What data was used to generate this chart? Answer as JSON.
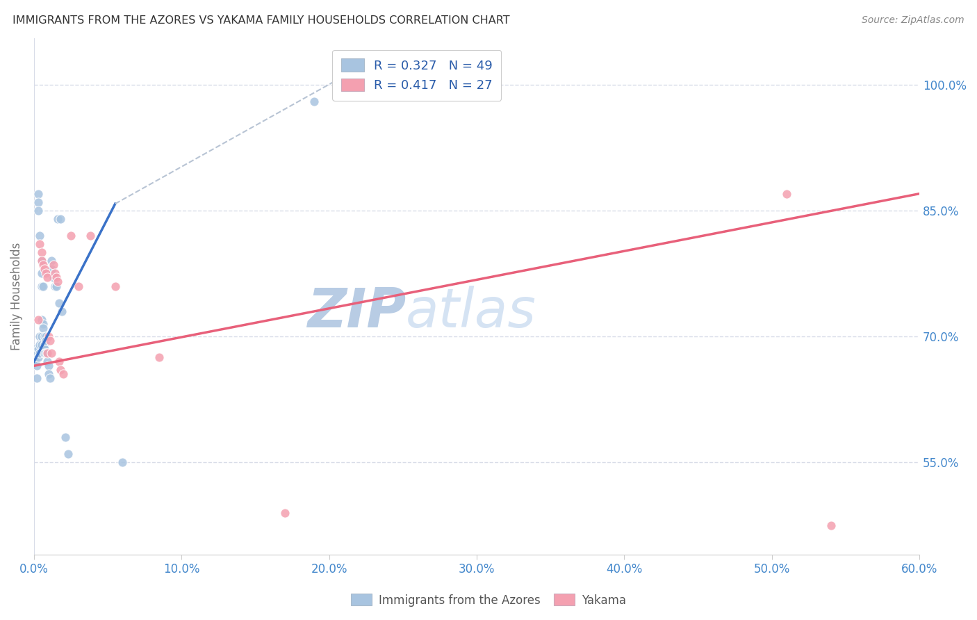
{
  "title": "IMMIGRANTS FROM THE AZORES VS YAKAMA FAMILY HOUSEHOLDS CORRELATION CHART",
  "source": "Source: ZipAtlas.com",
  "ylabel_label": "Family Households",
  "x_ticklabels": [
    "0.0%",
    "10.0%",
    "20.0%",
    "30.0%",
    "40.0%",
    "50.0%",
    "60.0%"
  ],
  "y_ticklabels": [
    "55.0%",
    "70.0%",
    "85.0%",
    "100.0%"
  ],
  "x_tick_vals": [
    0.0,
    0.1,
    0.2,
    0.3,
    0.4,
    0.5,
    0.6
  ],
  "y_tick_vals": [
    0.55,
    0.7,
    0.85,
    1.0
  ],
  "x_min": 0.0,
  "x_max": 0.6,
  "y_min": 0.44,
  "y_max": 1.055,
  "blue_color": "#a8c4e0",
  "pink_color": "#f4a0b0",
  "blue_line_color": "#3a72c8",
  "pink_line_color": "#e8607a",
  "dashed_line_color": "#b8c4d4",
  "legend_text_color": "#2a5caa",
  "title_color": "#333333",
  "source_color": "#888888",
  "axis_tick_color": "#4488cc",
  "grid_color": "#d8dce8",
  "R_blue": 0.327,
  "N_blue": 49,
  "R_pink": 0.417,
  "N_pink": 27,
  "blue_scatter_x": [
    0.001,
    0.001,
    0.002,
    0.002,
    0.002,
    0.003,
    0.003,
    0.003,
    0.003,
    0.003,
    0.004,
    0.004,
    0.004,
    0.004,
    0.005,
    0.005,
    0.005,
    0.005,
    0.005,
    0.005,
    0.006,
    0.006,
    0.006,
    0.007,
    0.007,
    0.007,
    0.007,
    0.008,
    0.008,
    0.008,
    0.009,
    0.009,
    0.01,
    0.01,
    0.011,
    0.012,
    0.012,
    0.013,
    0.013,
    0.014,
    0.015,
    0.016,
    0.017,
    0.018,
    0.019,
    0.021,
    0.023,
    0.19,
    0.06
  ],
  "blue_scatter_y": [
    0.685,
    0.67,
    0.68,
    0.665,
    0.65,
    0.87,
    0.86,
    0.85,
    0.685,
    0.675,
    0.82,
    0.7,
    0.69,
    0.68,
    0.79,
    0.775,
    0.76,
    0.72,
    0.7,
    0.69,
    0.76,
    0.715,
    0.71,
    0.7,
    0.69,
    0.685,
    0.68,
    0.7,
    0.695,
    0.68,
    0.68,
    0.67,
    0.665,
    0.655,
    0.65,
    0.79,
    0.78,
    0.77,
    0.77,
    0.76,
    0.76,
    0.84,
    0.74,
    0.84,
    0.73,
    0.58,
    0.56,
    0.98,
    0.55
  ],
  "pink_scatter_x": [
    0.003,
    0.004,
    0.005,
    0.005,
    0.006,
    0.007,
    0.008,
    0.009,
    0.009,
    0.01,
    0.011,
    0.012,
    0.013,
    0.014,
    0.015,
    0.016,
    0.017,
    0.018,
    0.02,
    0.025,
    0.03,
    0.038,
    0.055,
    0.085,
    0.17,
    0.51,
    0.54
  ],
  "pink_scatter_y": [
    0.72,
    0.81,
    0.8,
    0.79,
    0.785,
    0.78,
    0.775,
    0.77,
    0.68,
    0.7,
    0.695,
    0.68,
    0.785,
    0.775,
    0.77,
    0.765,
    0.67,
    0.66,
    0.655,
    0.82,
    0.76,
    0.82,
    0.76,
    0.675,
    0.49,
    0.87,
    0.475
  ],
  "blue_line_x": [
    0.0,
    0.055
  ],
  "blue_line_y": [
    0.67,
    0.858
  ],
  "dashed_line_x": [
    0.055,
    0.21
  ],
  "dashed_line_y": [
    0.858,
    1.01
  ],
  "pink_line_x": [
    0.0,
    0.6
  ],
  "pink_line_y": [
    0.665,
    0.87
  ],
  "figsize": [
    14.06,
    8.92
  ],
  "dpi": 100
}
